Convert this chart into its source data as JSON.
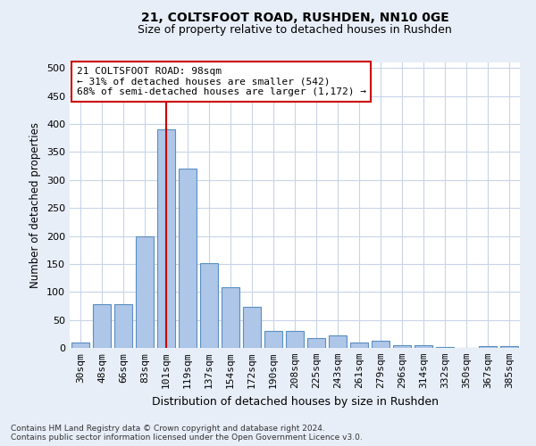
{
  "title1": "21, COLTSFOOT ROAD, RUSHDEN, NN10 0GE",
  "title2": "Size of property relative to detached houses in Rushden",
  "xlabel": "Distribution of detached houses by size in Rushden",
  "ylabel": "Number of detached properties",
  "categories": [
    "30sqm",
    "48sqm",
    "66sqm",
    "83sqm",
    "101sqm",
    "119sqm",
    "137sqm",
    "154sqm",
    "172sqm",
    "190sqm",
    "208sqm",
    "225sqm",
    "243sqm",
    "261sqm",
    "279sqm",
    "296sqm",
    "314sqm",
    "332sqm",
    "350sqm",
    "367sqm",
    "385sqm"
  ],
  "values": [
    10,
    78,
    78,
    200,
    390,
    320,
    152,
    108,
    73,
    30,
    30,
    18,
    22,
    10,
    12,
    5,
    5,
    1,
    0,
    3,
    3
  ],
  "bar_color": "#aec6e8",
  "bar_edge_color": "#5a8fc2",
  "vline_index": 4,
  "vline_color": "#cc0000",
  "annotation_text": "21 COLTSFOOT ROAD: 98sqm\n← 31% of detached houses are smaller (542)\n68% of semi-detached houses are larger (1,172) →",
  "annotation_box_color": "#ffffff",
  "annotation_box_edge": "#cc0000",
  "ylim": [
    0,
    510
  ],
  "yticks": [
    0,
    50,
    100,
    150,
    200,
    250,
    300,
    350,
    400,
    450,
    500
  ],
  "footnote1": "Contains HM Land Registry data © Crown copyright and database right 2024.",
  "footnote2": "Contains public sector information licensed under the Open Government Licence v3.0.",
  "bg_color": "#e8eef8",
  "plot_bg_color": "#ffffff",
  "grid_color": "#c8d4e8"
}
